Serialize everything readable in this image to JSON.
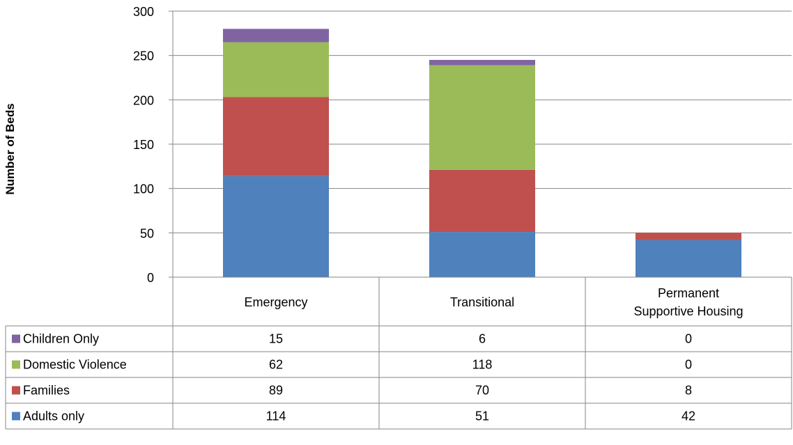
{
  "chart_data": {
    "type": "bar",
    "stacked": true,
    "title": "",
    "ylabel": "Number of Beds",
    "xlabel": "",
    "ylim": [
      0,
      300
    ],
    "yticks": [
      0,
      50,
      100,
      150,
      200,
      250,
      300
    ],
    "grid": true,
    "legend": "data-table-left",
    "categories": [
      "Emergency",
      "Transitional",
      "Permanent Supportive Housing"
    ],
    "series": [
      {
        "name": "Adults only",
        "color": "#4F81BD",
        "values": [
          114,
          51,
          42
        ]
      },
      {
        "name": "Families",
        "color": "#C0504D",
        "values": [
          89,
          70,
          8
        ]
      },
      {
        "name": "Domestic Violence",
        "color": "#9BBB59",
        "values": [
          62,
          118,
          0
        ]
      },
      {
        "name": "Children Only",
        "color": "#8064A2",
        "values": [
          15,
          6,
          0
        ]
      }
    ]
  }
}
